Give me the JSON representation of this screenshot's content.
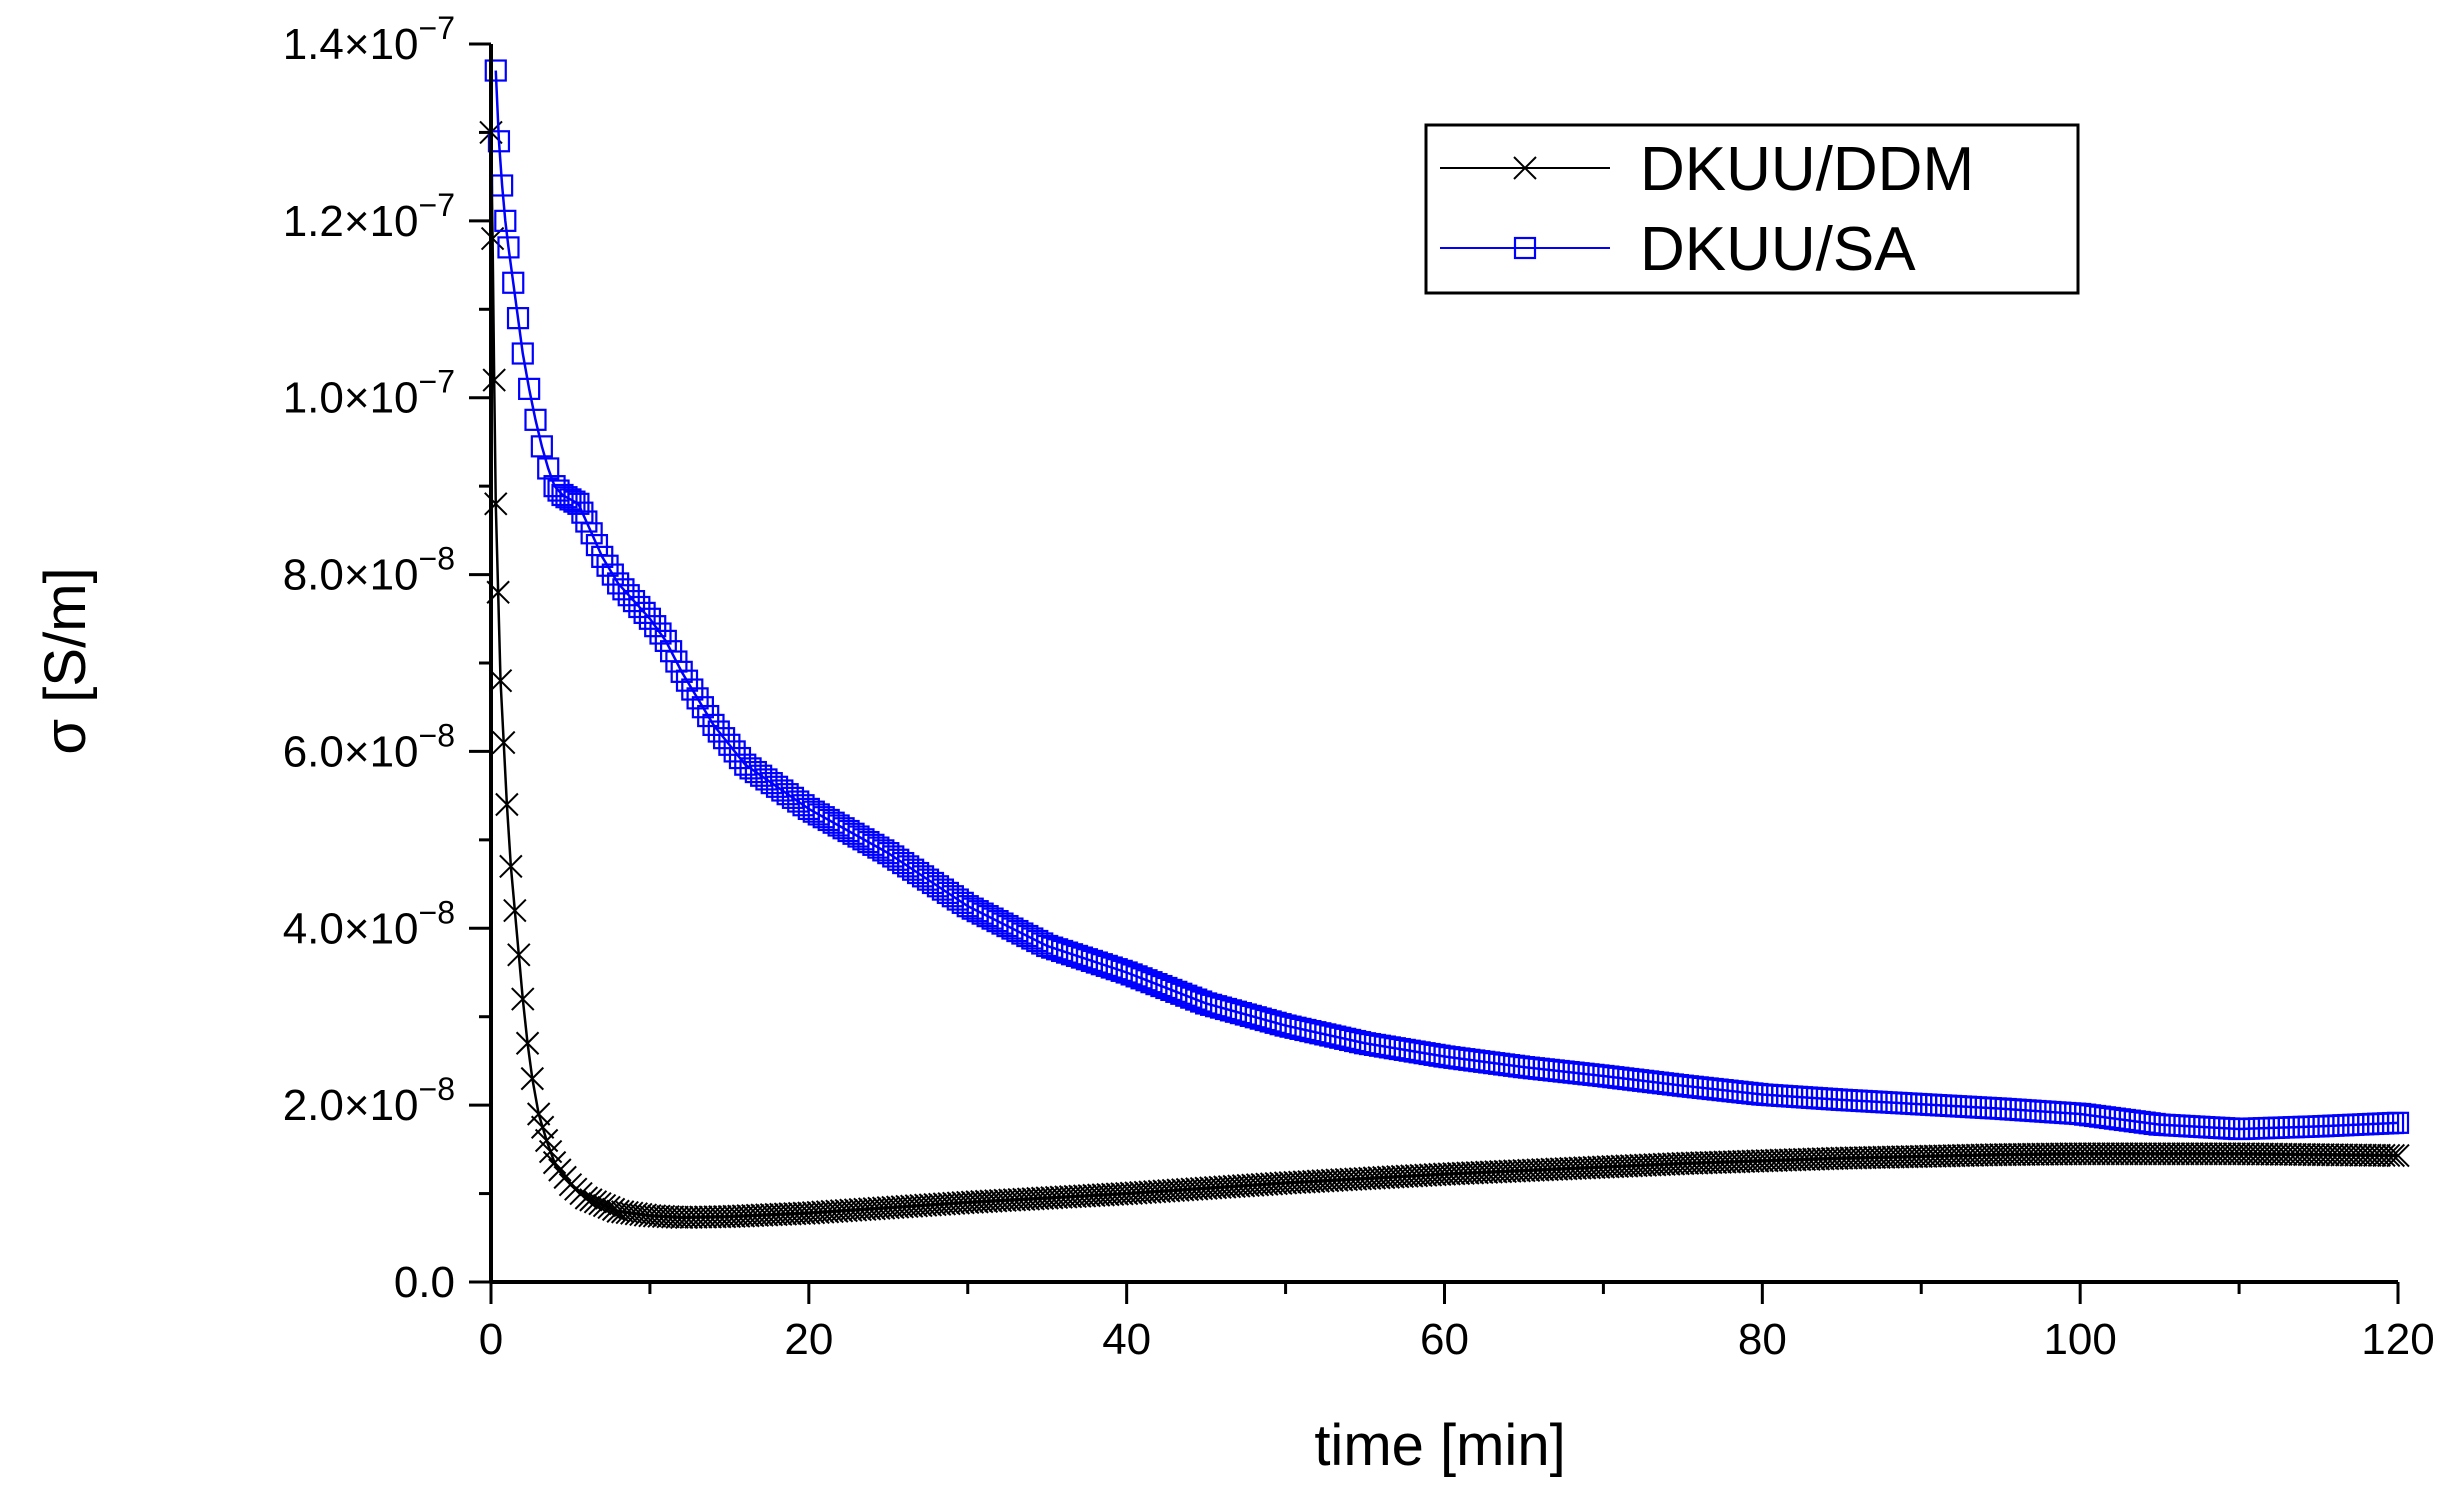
{
  "chart_data": {
    "type": "line",
    "title": "",
    "xlabel": "time [min]",
    "ylabel": "σ [S/m]",
    "xlim": [
      0,
      120
    ],
    "ylim": [
      0,
      1.4e-07
    ],
    "xticks": [
      0,
      20,
      40,
      60,
      80,
      100,
      120
    ],
    "xtick_labels": [
      "0",
      "20",
      "40",
      "60",
      "80",
      "100",
      "120"
    ],
    "yticks": [
      0,
      2e-08,
      4e-08,
      6e-08,
      8e-08,
      1e-07,
      1.2e-07,
      1.4e-07
    ],
    "ytick_labels": [
      {
        "mantissa": "0.0",
        "exponent": ""
      },
      {
        "mantissa": "2.0×10",
        "exponent": "−8"
      },
      {
        "mantissa": "4.0×10",
        "exponent": "−8"
      },
      {
        "mantissa": "6.0×10",
        "exponent": "−8"
      },
      {
        "mantissa": "8.0×10",
        "exponent": "−8"
      },
      {
        "mantissa": "1.0×10",
        "exponent": "−7"
      },
      {
        "mantissa": "1.2×10",
        "exponent": "−7"
      },
      {
        "mantissa": "1.4×10",
        "exponent": "−7"
      }
    ],
    "grid": false,
    "legend_position": "top-right",
    "series": [
      {
        "name": "DKUU/DDM",
        "color": "#000000",
        "marker": "x",
        "x": [
          0,
          0.1,
          0.2,
          0.3,
          0.45,
          0.6,
          0.8,
          1.0,
          1.25,
          1.5,
          1.75,
          2.0,
          2.3,
          2.6,
          3.0,
          3.5,
          4.0,
          5.0,
          6.0,
          8.0,
          10.0,
          12.0,
          15.0,
          20.0,
          25.0,
          30.0,
          35.0,
          40.0,
          45.0,
          50.0,
          55.0,
          60.0,
          65.0,
          70.0,
          75.0,
          80.0,
          85.0,
          90.0,
          95.0,
          100.0,
          105.0,
          110.0,
          115.0,
          120.0
        ],
        "y": [
          1.3e-07,
          1.18e-07,
          1.02e-07,
          8.8e-08,
          7.8e-08,
          6.8e-08,
          6.1e-08,
          5.4e-08,
          4.7e-08,
          4.2e-08,
          3.7e-08,
          3.2e-08,
          2.7e-08,
          2.3e-08,
          1.9e-08,
          1.6e-08,
          1.35e-08,
          1.1e-08,
          9.5e-09,
          8e-09,
          7.5e-09,
          7.3e-09,
          7.4e-09,
          7.8e-09,
          8.4e-09,
          9e-09,
          9.5e-09,
          1e-08,
          1.06e-08,
          1.12e-08,
          1.17e-08,
          1.22e-08,
          1.26e-08,
          1.3e-08,
          1.34e-08,
          1.37e-08,
          1.4e-08,
          1.42e-08,
          1.44e-08,
          1.45e-08,
          1.45e-08,
          1.45e-08,
          1.44e-08,
          1.43e-08
        ]
      },
      {
        "name": "DKUU/SA",
        "color": "#0000ff",
        "marker": "square",
        "x": [
          0.3,
          0.5,
          0.7,
          0.9,
          1.1,
          1.4,
          1.7,
          2.0,
          2.4,
          2.8,
          3.2,
          3.6,
          4.0,
          4.5,
          5.0,
          5.5,
          6.0,
          7.0,
          8.0,
          9.0,
          10.0,
          11.0,
          12.0,
          14.0,
          16.0,
          18.0,
          20.0,
          25.0,
          30.0,
          35.0,
          40.0,
          45.0,
          50.0,
          55.0,
          60.0,
          65.0,
          70.0,
          75.0,
          80.0,
          85.0,
          90.0,
          95.0,
          100.0,
          105.0,
          110.0,
          115.0,
          120.0
        ],
        "y": [
          1.37e-07,
          1.29e-07,
          1.24e-07,
          1.2e-07,
          1.17e-07,
          1.13e-07,
          1.09e-07,
          1.05e-07,
          1.01e-07,
          9.75e-08,
          9.45e-08,
          9.2e-08,
          9e-08,
          8.9e-08,
          8.85e-08,
          8.8e-08,
          8.6e-08,
          8.2e-08,
          7.9e-08,
          7.7e-08,
          7.5e-08,
          7.25e-08,
          6.9e-08,
          6.3e-08,
          5.85e-08,
          5.6e-08,
          5.35e-08,
          4.85e-08,
          4.25e-08,
          3.8e-08,
          3.5e-08,
          3.15e-08,
          2.9e-08,
          2.7e-08,
          2.55e-08,
          2.43e-08,
          2.33e-08,
          2.22e-08,
          2.12e-08,
          2.06e-08,
          2.01e-08,
          1.96e-08,
          1.9e-08,
          1.78e-08,
          1.73e-08,
          1.76e-08,
          1.8e-08
        ]
      }
    ]
  }
}
